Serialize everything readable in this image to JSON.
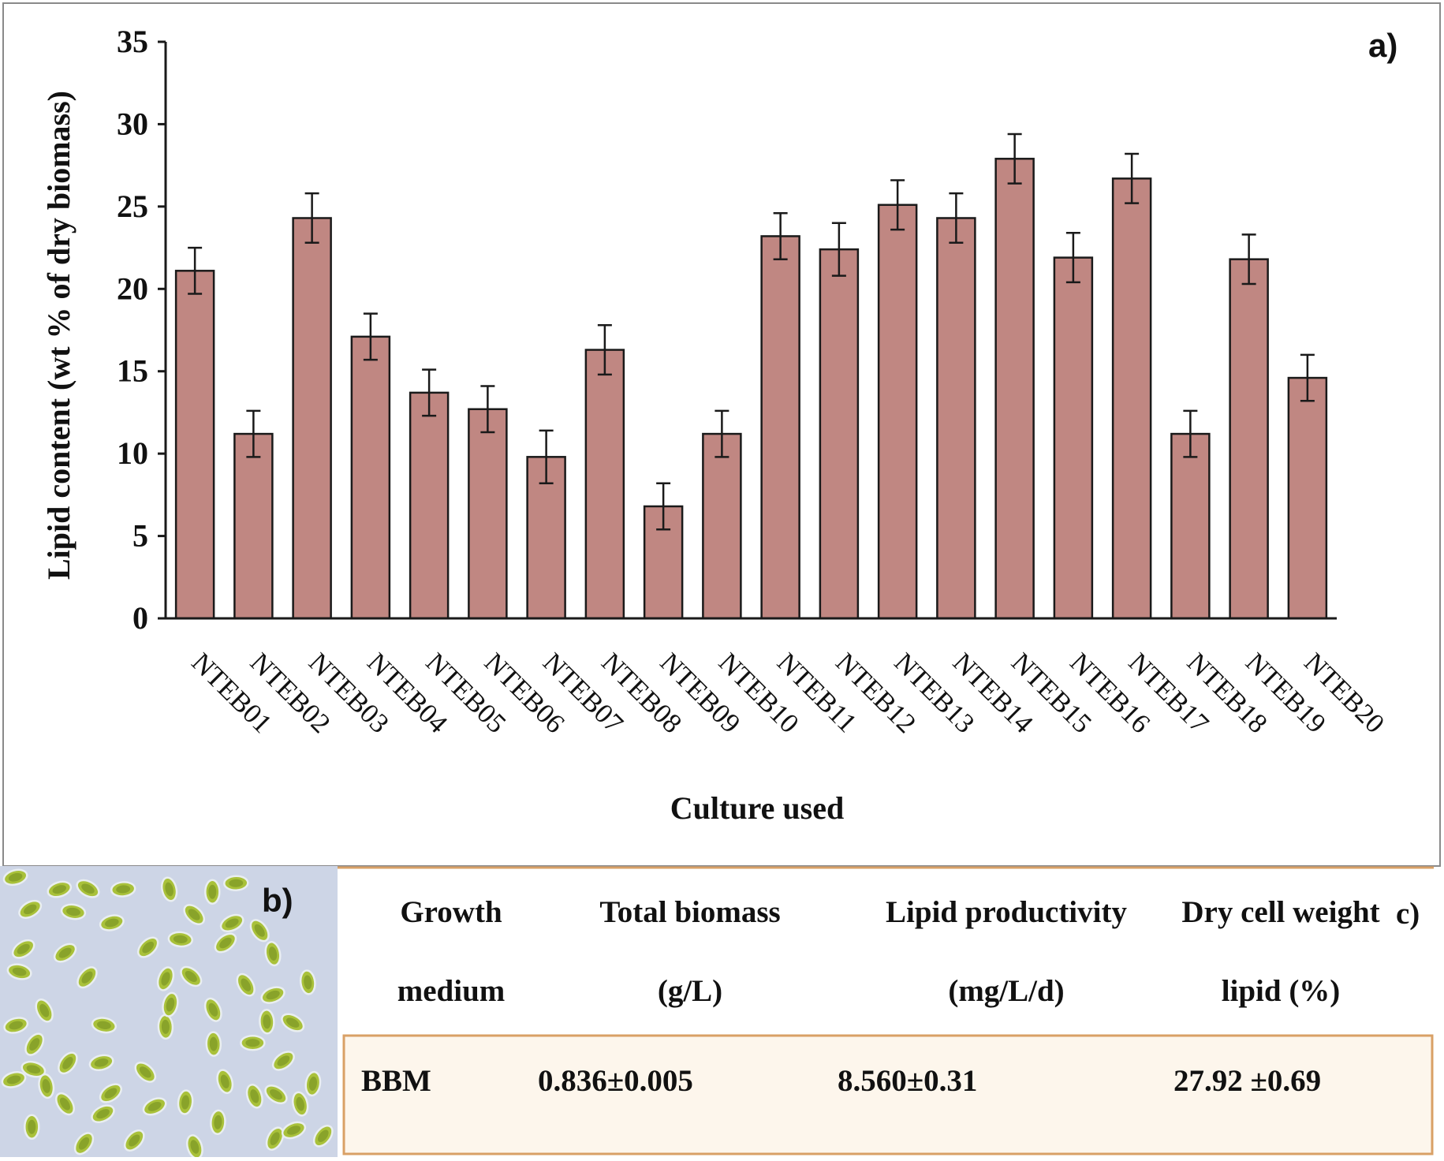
{
  "chart_data": {
    "type": "bar",
    "panel_label": "a)",
    "xlabel": "Culture used",
    "ylabel": "Lipid content (wt % of dry biomass)",
    "ylim": [
      0,
      35
    ],
    "yticks": [
      0,
      5,
      10,
      15,
      20,
      25,
      30,
      35
    ],
    "categories": [
      "NTEB01",
      "NTEB02",
      "NTEB03",
      "NTEB04",
      "NTEB05",
      "NTEB06",
      "NTEB07",
      "NTEB08",
      "NTEB09",
      "NTEB10",
      "NTEB11",
      "NTEB12",
      "NTEB13",
      "NTEB14",
      "NTEB15",
      "NTEB16",
      "NTEB17",
      "NTEB18",
      "NTEB19",
      "NTEB20"
    ],
    "values": [
      21.1,
      11.2,
      24.3,
      17.1,
      13.7,
      12.7,
      9.8,
      16.3,
      6.8,
      11.2,
      23.2,
      22.4,
      25.1,
      24.3,
      27.9,
      21.9,
      26.7,
      11.2,
      21.8,
      14.6
    ],
    "errors": [
      1.4,
      1.4,
      1.5,
      1.4,
      1.4,
      1.4,
      1.6,
      1.5,
      1.4,
      1.4,
      1.4,
      1.6,
      1.5,
      1.5,
      1.5,
      1.5,
      1.5,
      1.4,
      1.5,
      1.4
    ],
    "bar_color": "#c08782",
    "grid": false
  },
  "micrograph": {
    "panel_label": "b)",
    "background_color": "#cdd5e6",
    "cell_color": "#a9c13a"
  },
  "table": {
    "panel_label": "c)",
    "headers": [
      {
        "line1": "Growth",
        "line2": "medium"
      },
      {
        "line1": "Total biomass",
        "line2": "(g/L)"
      },
      {
        "line1": "Lipid productivity",
        "line2": "(mg/L/d)"
      },
      {
        "line1": "Dry cell weight",
        "line2": "lipid (%)"
      }
    ],
    "row": [
      "BBM",
      "0.836±0.005",
      "8.560±0.31",
      "27.92 ±0.69"
    ],
    "border_color": "#d9a066",
    "row_fill": "#fdf6ec"
  }
}
